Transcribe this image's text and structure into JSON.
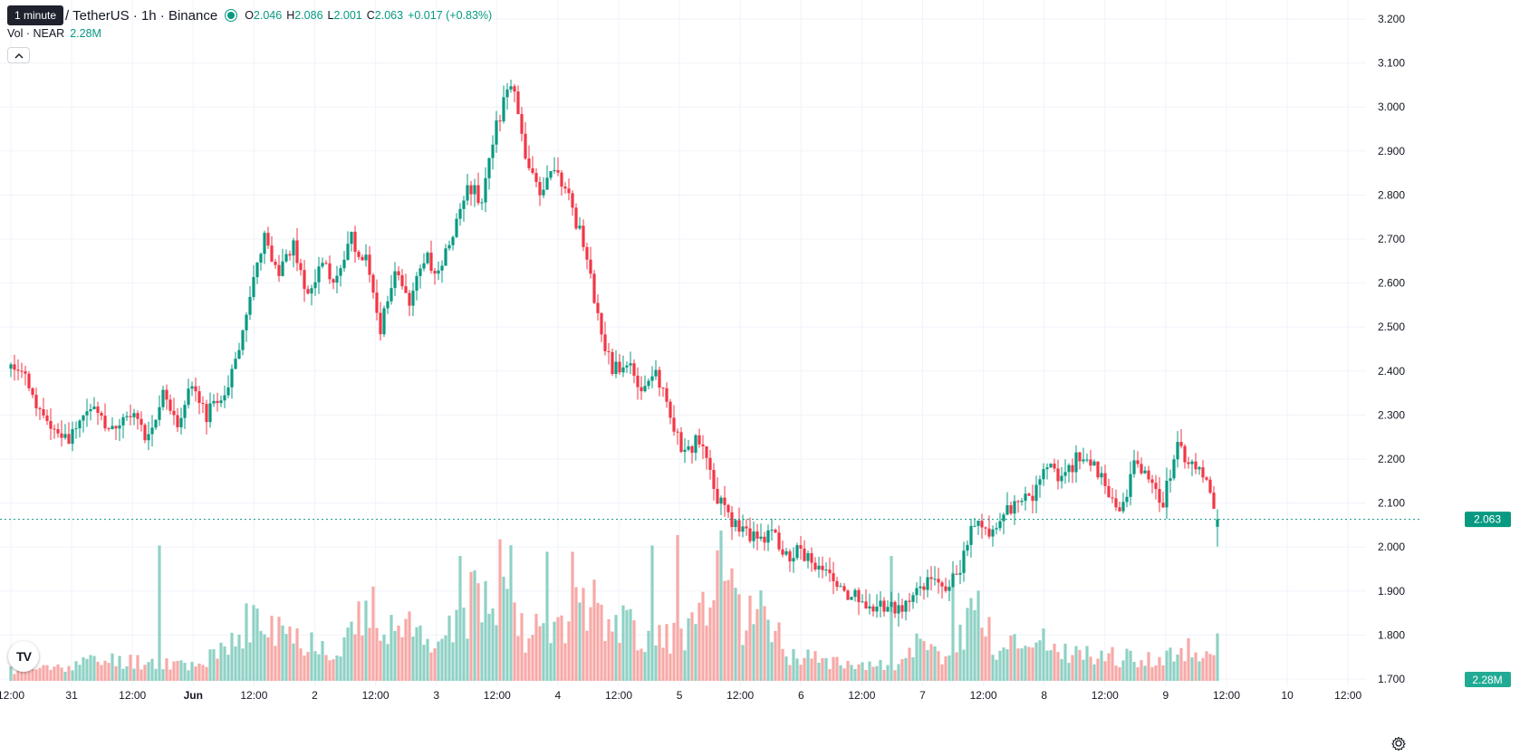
{
  "legend": {
    "tooltip": "1 minute",
    "symbol": "/ TetherUS · 1h · Binance",
    "open_label": "O",
    "open": "2.046",
    "high_label": "H",
    "high": "2.086",
    "low_label": "L",
    "low": "2.001",
    "close_label": "C",
    "close": "2.063",
    "change": "+0.017 (+0.83%)"
  },
  "volume_legend": {
    "label": "Vol · NEAR",
    "value": "2.28M"
  },
  "price_tag": "2.063",
  "volume_tag": "2.28M",
  "logo_text": "TV",
  "colors": {
    "up": "#089981",
    "down": "#f23645",
    "up_vol": "#8fd1c5",
    "down_vol": "#f7a9a7",
    "grid": "#f0f3fa",
    "text": "#131722"
  },
  "icons": {
    "collapse": "chevron-up-icon",
    "logo": "tradingview-logo-icon",
    "settings": "gear-icon"
  },
  "chart_data": {
    "type": "candlestick",
    "timeframe": "1h",
    "y_axis": {
      "ticks": [
        "3.200",
        "3.100",
        "3.000",
        "2.900",
        "2.800",
        "2.700",
        "2.600",
        "2.500",
        "2.400",
        "2.300",
        "2.200",
        "2.100",
        "2.000",
        "1.900",
        "1.800",
        "1.700"
      ],
      "range": [
        1.695,
        3.2
      ]
    },
    "x_axis": {
      "ticks": [
        "12:00",
        "31",
        "12:00",
        "Jun",
        "12:00",
        "2",
        "12:00",
        "3",
        "12:00",
        "4",
        "12:00",
        "5",
        "12:00",
        "6",
        "12:00",
        "7",
        "12:00",
        "8",
        "12:00",
        "9",
        "12:00",
        "10",
        "12:00"
      ]
    },
    "last_price": 2.063,
    "volume_max_m": 6.5,
    "anchors": [
      [
        0,
        2.41
      ],
      [
        3,
        2.41
      ],
      [
        6,
        2.33
      ],
      [
        10,
        2.3
      ],
      [
        14,
        2.24
      ],
      [
        18,
        2.26
      ],
      [
        22,
        2.32
      ],
      [
        26,
        2.28
      ],
      [
        30,
        2.27
      ],
      [
        34,
        2.31
      ],
      [
        38,
        2.24
      ],
      [
        42,
        2.34
      ],
      [
        46,
        2.27
      ],
      [
        50,
        2.37
      ],
      [
        54,
        2.3
      ],
      [
        58,
        2.34
      ],
      [
        62,
        2.42
      ],
      [
        66,
        2.58
      ],
      [
        70,
        2.7
      ],
      [
        74,
        2.62
      ],
      [
        78,
        2.69
      ],
      [
        82,
        2.57
      ],
      [
        86,
        2.64
      ],
      [
        90,
        2.6
      ],
      [
        94,
        2.7
      ],
      [
        98,
        2.65
      ],
      [
        102,
        2.49
      ],
      [
        106,
        2.64
      ],
      [
        110,
        2.55
      ],
      [
        114,
        2.66
      ],
      [
        118,
        2.63
      ],
      [
        122,
        2.7
      ],
      [
        126,
        2.82
      ],
      [
        130,
        2.79
      ],
      [
        134,
        2.96
      ],
      [
        138,
        3.06
      ],
      [
        142,
        2.9
      ],
      [
        146,
        2.81
      ],
      [
        150,
        2.87
      ],
      [
        154,
        2.79
      ],
      [
        158,
        2.69
      ],
      [
        162,
        2.52
      ],
      [
        166,
        2.4
      ],
      [
        170,
        2.42
      ],
      [
        174,
        2.35
      ],
      [
        178,
        2.4
      ],
      [
        182,
        2.29
      ],
      [
        186,
        2.21
      ],
      [
        190,
        2.25
      ],
      [
        194,
        2.13
      ],
      [
        198,
        2.07
      ],
      [
        202,
        2.03
      ],
      [
        206,
        2.02
      ],
      [
        210,
        2.03
      ],
      [
        214,
        1.98
      ],
      [
        218,
        1.99
      ],
      [
        222,
        1.96
      ],
      [
        226,
        1.93
      ],
      [
        230,
        1.9
      ],
      [
        234,
        1.88
      ],
      [
        238,
        1.86
      ],
      [
        242,
        1.87
      ],
      [
        246,
        1.85
      ],
      [
        250,
        1.9
      ],
      [
        254,
        1.93
      ],
      [
        258,
        1.91
      ],
      [
        262,
        1.95
      ],
      [
        266,
        2.06
      ],
      [
        270,
        2.02
      ],
      [
        274,
        2.08
      ],
      [
        278,
        2.09
      ],
      [
        282,
        2.12
      ],
      [
        286,
        2.19
      ],
      [
        290,
        2.15
      ],
      [
        294,
        2.2
      ],
      [
        298,
        2.19
      ],
      [
        302,
        2.14
      ],
      [
        306,
        2.08
      ],
      [
        310,
        2.18
      ],
      [
        314,
        2.17
      ],
      [
        318,
        2.1
      ],
      [
        322,
        2.24
      ],
      [
        326,
        2.18
      ],
      [
        330,
        2.16
      ],
      [
        332,
        2.1
      ],
      [
        333,
        2.063
      ]
    ],
    "volume_anchors": [
      [
        0,
        0.5
      ],
      [
        10,
        0.6
      ],
      [
        20,
        0.9
      ],
      [
        30,
        1.0
      ],
      [
        40,
        0.9
      ],
      [
        50,
        0.8
      ],
      [
        60,
        1.4
      ],
      [
        66,
        3.0
      ],
      [
        70,
        2.5
      ],
      [
        80,
        2.0
      ],
      [
        90,
        1.6
      ],
      [
        96,
        2.7
      ],
      [
        100,
        3.2
      ],
      [
        110,
        2.4
      ],
      [
        120,
        2.0
      ],
      [
        126,
        3.5
      ],
      [
        130,
        4.0
      ],
      [
        134,
        4.8
      ],
      [
        138,
        5.2
      ],
      [
        142,
        2.4
      ],
      [
        150,
        2.2
      ],
      [
        154,
        3.6
      ],
      [
        158,
        4.5
      ],
      [
        166,
        3.0
      ],
      [
        170,
        2.6
      ],
      [
        178,
        2.0
      ],
      [
        186,
        2.4
      ],
      [
        192,
        3.2
      ],
      [
        196,
        5.0
      ],
      [
        202,
        3.0
      ],
      [
        206,
        4.0
      ],
      [
        214,
        1.4
      ],
      [
        222,
        1.0
      ],
      [
        230,
        1.0
      ],
      [
        238,
        0.7
      ],
      [
        246,
        0.8
      ],
      [
        250,
        1.6
      ],
      [
        260,
        1.0
      ],
      [
        266,
        4.0
      ],
      [
        272,
        1.4
      ],
      [
        278,
        1.8
      ],
      [
        282,
        2.2
      ],
      [
        290,
        1.4
      ],
      [
        300,
        1.2
      ],
      [
        310,
        1.1
      ],
      [
        318,
        1.0
      ],
      [
        322,
        1.6
      ],
      [
        330,
        1.2
      ],
      [
        333,
        2.28
      ]
    ],
    "volume_spikes": [
      [
        41,
        6.5
      ],
      [
        124,
        6.0
      ],
      [
        135,
        6.8
      ],
      [
        148,
        6.2
      ],
      [
        155,
        6.2
      ],
      [
        177,
        6.5
      ],
      [
        184,
        7.0
      ],
      [
        197,
        4.8
      ],
      [
        199,
        5.4
      ],
      [
        243,
        6.0
      ],
      [
        260,
        5.2
      ]
    ]
  }
}
